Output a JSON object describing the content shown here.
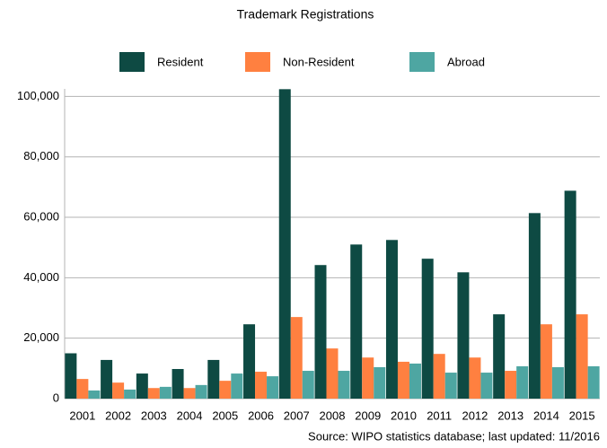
{
  "chart_data": {
    "type": "bar",
    "title": "Trademark Registrations",
    "source": "Source: WIPO statistics database; last updated: 11/2016",
    "categories": [
      "2001",
      "2002",
      "2003",
      "2004",
      "2005",
      "2006",
      "2007",
      "2008",
      "2009",
      "2010",
      "2011",
      "2012",
      "2013",
      "2014",
      "2015"
    ],
    "series": [
      {
        "name": "Resident",
        "color": "#0e4a43",
        "values": [
          15000,
          12800,
          8300,
          9800,
          12800,
          24600,
          102400,
          44200,
          51000,
          52500,
          46300,
          41800,
          27900,
          61400,
          68800
        ]
      },
      {
        "name": "Non-Resident",
        "color": "#ff8040",
        "values": [
          6500,
          5300,
          3500,
          3500,
          5900,
          8900,
          27000,
          16600,
          13600,
          12200,
          14800,
          13600,
          9200,
          24600,
          27900
        ]
      },
      {
        "name": "Abroad",
        "color": "#4ea6a2",
        "values": [
          2700,
          3000,
          3900,
          4500,
          8300,
          7400,
          9200,
          9200,
          10400,
          11600,
          8600,
          8600,
          10700,
          10400,
          10700
        ]
      }
    ],
    "ylim": [
      0,
      102500
    ],
    "yticks": [
      0,
      {
        "value": 20000,
        "label": "20,000"
      },
      {
        "value": 40000,
        "label": "40,000"
      },
      {
        "value": 60000,
        "label": "60,000"
      },
      {
        "value": 80000,
        "label": "80,000"
      },
      {
        "value": 100000,
        "label": "100,000"
      }
    ],
    "grid": true,
    "legend": "top"
  }
}
